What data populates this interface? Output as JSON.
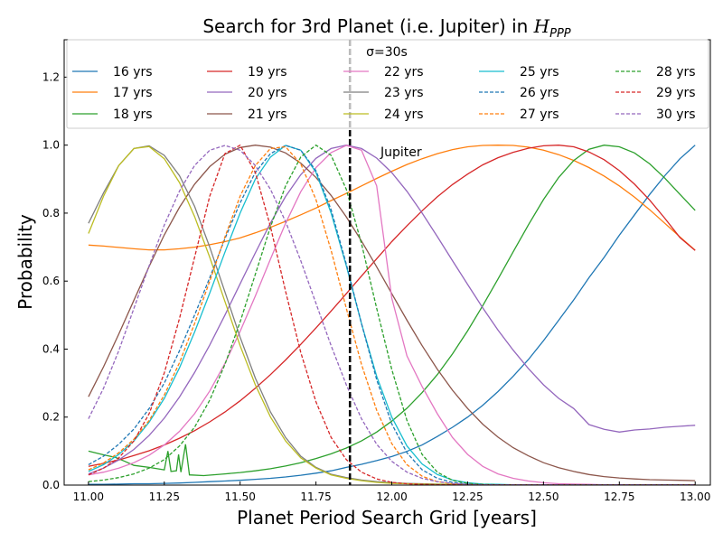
{
  "chart_data": {
    "type": "line",
    "title_prefix": "Search for 3rd Planet (i.e. Jupiter) in ",
    "title_symbol": "H",
    "title_sub": "PPP",
    "xlabel": "Planet Period Search Grid [years]",
    "ylabel": "Probability",
    "xlim": [
      10.92,
      13.05
    ],
    "ylim": [
      0.0,
      1.31
    ],
    "xticks": [
      "11.00",
      "11.25",
      "11.50",
      "11.75",
      "12.00",
      "12.25",
      "12.50",
      "12.75",
      "13.00"
    ],
    "xtick_values": [
      11.0,
      11.25,
      11.5,
      11.75,
      12.0,
      12.25,
      12.5,
      12.75,
      13.0
    ],
    "yticks": [
      "0.0",
      "0.2",
      "0.4",
      "0.6",
      "0.8",
      "1.0",
      "1.2"
    ],
    "ytick_values": [
      0.0,
      0.2,
      0.4,
      0.6,
      0.8,
      1.0,
      1.2
    ],
    "legend_title": "σ=30s",
    "legend_location": "top",
    "grid": false,
    "jupiter_period": 11.862,
    "jupiter_label": "Jupiter",
    "x": [
      11.0,
      11.05,
      11.1,
      11.15,
      11.2,
      11.25,
      11.3,
      11.35,
      11.4,
      11.45,
      11.5,
      11.55,
      11.6,
      11.65,
      11.7,
      11.75,
      11.8,
      11.85,
      11.9,
      11.95,
      12.0,
      12.05,
      12.1,
      12.15,
      12.2,
      12.25,
      12.3,
      12.35,
      12.4,
      12.45,
      12.5,
      12.55,
      12.6,
      12.65,
      12.7,
      12.75,
      12.8,
      12.85,
      12.9,
      12.95,
      13.0
    ],
    "series": [
      {
        "name": "16 yrs",
        "color": "#1f77b4",
        "dash": false,
        "values": [
          0.002,
          0.002,
          0.003,
          0.004,
          0.004,
          0.005,
          0.006,
          0.008,
          0.01,
          0.012,
          0.014,
          0.017,
          0.02,
          0.024,
          0.029,
          0.035,
          0.042,
          0.052,
          0.061,
          0.072,
          0.084,
          0.099,
          0.118,
          0.143,
          0.17,
          0.2,
          0.235,
          0.275,
          0.32,
          0.369,
          0.425,
          0.485,
          0.545,
          0.61,
          0.67,
          0.735,
          0.795,
          0.855,
          0.91,
          0.96,
          1.0
        ]
      },
      {
        "name": "17 yrs",
        "color": "#ff7f0e",
        "dash": false,
        "values": [
          0.706,
          0.703,
          0.699,
          0.695,
          0.692,
          0.692,
          0.695,
          0.7,
          0.707,
          0.716,
          0.727,
          0.742,
          0.758,
          0.776,
          0.795,
          0.815,
          0.837,
          0.858,
          0.88,
          0.902,
          0.923,
          0.943,
          0.96,
          0.975,
          0.987,
          0.995,
          0.999,
          1.0,
          0.999,
          0.994,
          0.985,
          0.972,
          0.955,
          0.934,
          0.909,
          0.88,
          0.847,
          0.81,
          0.77,
          0.73,
          0.691
        ]
      },
      {
        "name": "18 yrs",
        "color": "#2ca02c",
        "dash": false,
        "values": [
          0.1,
          0.089,
          0.08,
          0.058,
          0.05,
          0.048,
          0.043,
          0.03,
          0.03,
          0.033,
          0.037,
          0.042,
          0.048,
          0.056,
          0.066,
          0.078,
          0.092,
          0.109,
          0.13,
          0.156,
          0.188,
          0.226,
          0.272,
          0.325,
          0.386,
          0.454,
          0.528,
          0.606,
          0.686,
          0.765,
          0.84,
          0.905,
          0.955,
          0.988,
          1.0,
          0.995,
          0.977,
          0.945,
          0.903,
          0.855,
          0.808
        ]
      },
      {
        "name": "19 yrs",
        "color": "#d62728",
        "dash": false,
        "values": [
          0.055,
          0.064,
          0.074,
          0.087,
          0.101,
          0.118,
          0.138,
          0.16,
          0.186,
          0.215,
          0.248,
          0.285,
          0.325,
          0.368,
          0.414,
          0.462,
          0.512,
          0.563,
          0.615,
          0.666,
          0.716,
          0.763,
          0.807,
          0.848,
          0.884,
          0.915,
          0.942,
          0.963,
          0.979,
          0.991,
          0.998,
          1.0,
          0.995,
          0.98,
          0.957,
          0.925,
          0.885,
          0.838,
          0.785,
          0.728,
          0.69
        ]
      },
      {
        "name": "20 yrs",
        "color": "#9467bd",
        "dash": false,
        "values": [
          0.033,
          0.05,
          0.074,
          0.105,
          0.146,
          0.197,
          0.259,
          0.331,
          0.412,
          0.5,
          0.592,
          0.683,
          0.771,
          0.849,
          0.913,
          0.961,
          0.99,
          1.0,
          0.99,
          0.962,
          0.919,
          0.864,
          0.8,
          0.731,
          0.66,
          0.59,
          0.521,
          0.456,
          0.397,
          0.343,
          0.295,
          0.255,
          0.225,
          0.178,
          0.164,
          0.156,
          0.162,
          0.165,
          0.17,
          0.173,
          0.176
        ]
      },
      {
        "name": "21 yrs",
        "color": "#8c564b",
        "dash": false,
        "values": [
          0.26,
          0.348,
          0.444,
          0.544,
          0.643,
          0.736,
          0.817,
          0.885,
          0.937,
          0.973,
          0.993,
          1.0,
          0.994,
          0.977,
          0.947,
          0.905,
          0.852,
          0.789,
          0.718,
          0.642,
          0.563,
          0.485,
          0.41,
          0.341,
          0.279,
          0.225,
          0.179,
          0.141,
          0.11,
          0.086,
          0.066,
          0.051,
          0.04,
          0.031,
          0.025,
          0.021,
          0.018,
          0.016,
          0.015,
          0.014,
          0.013
        ]
      },
      {
        "name": "22 yrs",
        "color": "#e377c2",
        "dash": false,
        "values": [
          0.03,
          0.038,
          0.05,
          0.066,
          0.088,
          0.118,
          0.158,
          0.21,
          0.277,
          0.358,
          0.452,
          0.556,
          0.665,
          0.77,
          0.863,
          0.934,
          0.978,
          0.999,
          0.985,
          0.88,
          0.55,
          0.38,
          0.29,
          0.21,
          0.14,
          0.09,
          0.055,
          0.033,
          0.02,
          0.012,
          0.007,
          0.004,
          0.003,
          0.002,
          0.001,
          0.001,
          0.001,
          0.001,
          0.001,
          0.001,
          0.001
        ]
      },
      {
        "name": "23 yrs",
        "color": "#7f7f7f",
        "dash": false,
        "values": [
          0.77,
          0.86,
          0.94,
          0.99,
          0.998,
          0.97,
          0.91,
          0.82,
          0.7,
          0.568,
          0.435,
          0.315,
          0.215,
          0.14,
          0.085,
          0.052,
          0.032,
          0.022,
          0.015,
          0.01,
          0.007,
          0.005,
          0.004,
          0.003,
          0.002,
          0.002,
          0.001,
          0.001,
          0.001,
          0.001,
          0.001,
          0.001,
          0.001,
          0.001,
          0.001,
          0.001,
          0.001,
          0.001,
          0.001,
          0.001,
          0.001
        ]
      },
      {
        "name": "24 yrs",
        "color": "#bcbd22",
        "dash": false,
        "values": [
          0.74,
          0.85,
          0.94,
          0.99,
          0.996,
          0.96,
          0.89,
          0.79,
          0.67,
          0.54,
          0.41,
          0.295,
          0.2,
          0.13,
          0.08,
          0.05,
          0.03,
          0.02,
          0.013,
          0.008,
          0.005,
          0.004,
          0.003,
          0.002,
          0.002,
          0.001,
          0.001,
          0.001,
          0.001,
          0.001,
          0.001,
          0.001,
          0.001,
          0.001,
          0.001,
          0.001,
          0.001,
          0.001,
          0.001,
          0.001,
          0.001
        ]
      },
      {
        "name": "25 yrs",
        "color": "#17becf",
        "dash": false,
        "values": [
          0.04,
          0.06,
          0.09,
          0.13,
          0.185,
          0.255,
          0.345,
          0.45,
          0.565,
          0.685,
          0.8,
          0.9,
          0.965,
          0.999,
          0.985,
          0.92,
          0.8,
          0.645,
          0.475,
          0.32,
          0.2,
          0.115,
          0.062,
          0.031,
          0.015,
          0.007,
          0.003,
          0.002,
          0.001,
          0.001,
          0.001,
          0.001,
          0.001,
          0.001,
          0.001,
          0.001,
          0.001,
          0.001,
          0.001,
          0.001,
          0.001
        ]
      },
      {
        "name": "26 yrs",
        "color": "#1f77b4",
        "dash": true,
        "values": [
          0.06,
          0.085,
          0.12,
          0.165,
          0.225,
          0.3,
          0.395,
          0.5,
          0.61,
          0.725,
          0.83,
          0.92,
          0.975,
          0.999,
          0.985,
          0.925,
          0.81,
          0.65,
          0.475,
          0.31,
          0.18,
          0.095,
          0.045,
          0.02,
          0.008,
          0.003,
          0.001,
          0.001,
          0.001,
          0.001,
          0.001,
          0.001,
          0.001,
          0.001,
          0.001,
          0.001,
          0.001,
          0.001,
          0.001,
          0.001,
          0.001
        ]
      },
      {
        "name": "27 yrs",
        "color": "#ff7f0e",
        "dash": true,
        "values": [
          0.045,
          0.065,
          0.095,
          0.135,
          0.19,
          0.265,
          0.36,
          0.475,
          0.6,
          0.73,
          0.85,
          0.94,
          0.99,
          0.995,
          0.945,
          0.84,
          0.69,
          0.52,
          0.355,
          0.22,
          0.122,
          0.06,
          0.026,
          0.01,
          0.004,
          0.001,
          0.001,
          0.001,
          0.001,
          0.001,
          0.001,
          0.001,
          0.001,
          0.001,
          0.001,
          0.001,
          0.001,
          0.001,
          0.001,
          0.001,
          0.001
        ]
      },
      {
        "name": "28 yrs",
        "color": "#2ca02c",
        "dash": true,
        "values": [
          0.01,
          0.015,
          0.022,
          0.033,
          0.05,
          0.075,
          0.115,
          0.17,
          0.25,
          0.355,
          0.48,
          0.62,
          0.76,
          0.88,
          0.965,
          1.0,
          0.97,
          0.87,
          0.71,
          0.52,
          0.34,
          0.19,
          0.09,
          0.038,
          0.014,
          0.005,
          0.002,
          0.001,
          0.001,
          0.001,
          0.001,
          0.001,
          0.001,
          0.001,
          0.001,
          0.001,
          0.001,
          0.001,
          0.001,
          0.001,
          0.001
        ]
      },
      {
        "name": "29 yrs",
        "color": "#d62728",
        "dash": true,
        "values": [
          0.03,
          0.05,
          0.08,
          0.13,
          0.21,
          0.33,
          0.49,
          0.67,
          0.85,
          0.975,
          1.0,
          0.92,
          0.76,
          0.57,
          0.39,
          0.245,
          0.14,
          0.075,
          0.038,
          0.018,
          0.008,
          0.004,
          0.002,
          0.001,
          0.001,
          0.001,
          0.001,
          0.001,
          0.001,
          0.001,
          0.001,
          0.001,
          0.001,
          0.001,
          0.001,
          0.001,
          0.001,
          0.001,
          0.001,
          0.001,
          0.001
        ]
      },
      {
        "name": "30 yrs",
        "color": "#9467bd",
        "dash": true,
        "values": [
          0.195,
          0.285,
          0.395,
          0.52,
          0.645,
          0.765,
          0.865,
          0.94,
          0.985,
          0.999,
          0.985,
          0.94,
          0.87,
          0.775,
          0.66,
          0.535,
          0.41,
          0.295,
          0.195,
          0.12,
          0.07,
          0.038,
          0.02,
          0.01,
          0.005,
          0.002,
          0.001,
          0.001,
          0.001,
          0.001,
          0.001,
          0.001,
          0.001,
          0.001,
          0.001,
          0.001,
          0.001,
          0.001,
          0.001,
          0.001,
          0.001
        ]
      }
    ],
    "spikes": {
      "series": "18 yrs",
      "points": [
        [
          11.0,
          0.1
        ],
        [
          11.05,
          0.089
        ],
        [
          11.09,
          0.081
        ],
        [
          11.12,
          0.07
        ],
        [
          11.15,
          0.058
        ],
        [
          11.2,
          0.052
        ],
        [
          11.25,
          0.045
        ],
        [
          11.262,
          0.1
        ],
        [
          11.272,
          0.04
        ],
        [
          11.29,
          0.042
        ],
        [
          11.297,
          0.09
        ],
        [
          11.305,
          0.038
        ],
        [
          11.32,
          0.12
        ],
        [
          11.333,
          0.03
        ],
        [
          11.38,
          0.028
        ],
        [
          11.45,
          0.033
        ]
      ]
    }
  }
}
